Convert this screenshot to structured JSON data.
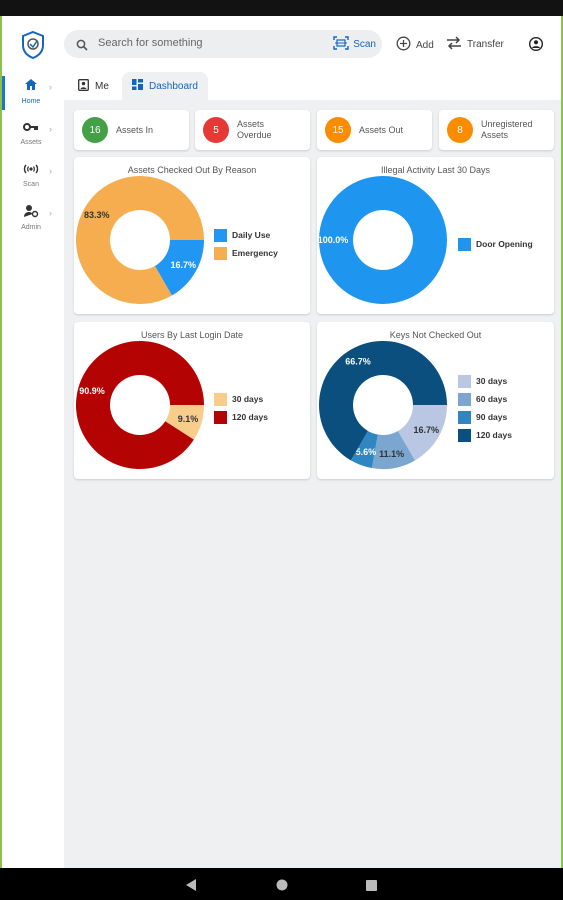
{
  "colors": {
    "accent": "#1565c0",
    "green": "#43a047",
    "red": "#e53935",
    "orange": "#fb8c00"
  },
  "search": {
    "placeholder": "Search for something",
    "scan_label": "Scan"
  },
  "top_actions": {
    "add_label": "Add",
    "transfer_label": "Transfer"
  },
  "rail": {
    "items": [
      {
        "label": "Home",
        "icon": "home-icon"
      },
      {
        "label": "Assets",
        "icon": "key-icon"
      },
      {
        "label": "Scan",
        "icon": "scan-icon"
      },
      {
        "label": "Admin",
        "icon": "admin-icon"
      }
    ]
  },
  "tabs": [
    {
      "label": "Me"
    },
    {
      "label": "Dashboard"
    }
  ],
  "stats": [
    {
      "value": "16",
      "label": "Assets In",
      "color": "#43a047"
    },
    {
      "value": "5",
      "label": "Assets Overdue",
      "color": "#e53935"
    },
    {
      "value": "15",
      "label": "Assets Out",
      "color": "#fb8c00"
    },
    {
      "value": "8",
      "label": "Unregistered Assets",
      "color": "#fb8c00"
    }
  ],
  "chart_data": [
    {
      "type": "pie",
      "title": "Assets Checked Out By Reason",
      "labels": [
        "Daily Use",
        "Emergency"
      ],
      "values": [
        16.7,
        83.3
      ],
      "colors": [
        "#2196f3",
        "#f6ad4f"
      ],
      "value_labels": [
        "16.7%",
        "83.3%"
      ]
    },
    {
      "type": "pie",
      "title": "Illegal Activity Last 30 Days",
      "labels": [
        "Door Opening"
      ],
      "values": [
        100.0
      ],
      "colors": [
        "#1e96ef"
      ],
      "value_labels": [
        "100.0%"
      ]
    },
    {
      "type": "pie",
      "title": "Users By Last Login Date",
      "labels": [
        "30 days",
        "120 days"
      ],
      "values": [
        9.1,
        90.9
      ],
      "colors": [
        "#f8cd8c",
        "#b40303"
      ],
      "value_labels": [
        "9.1%",
        "90.9%"
      ]
    },
    {
      "type": "pie",
      "title": "Keys Not Checked Out",
      "labels": [
        "30 days",
        "60 days",
        "90 days",
        "120 days"
      ],
      "values": [
        16.7,
        11.1,
        5.6,
        66.7
      ],
      "colors": [
        "#b9c7e2",
        "#7ba6cf",
        "#2f87c2",
        "#0a4f7e"
      ],
      "value_labels": [
        "16.7%",
        "11.1%",
        "5.6%",
        "66.7%"
      ]
    }
  ]
}
